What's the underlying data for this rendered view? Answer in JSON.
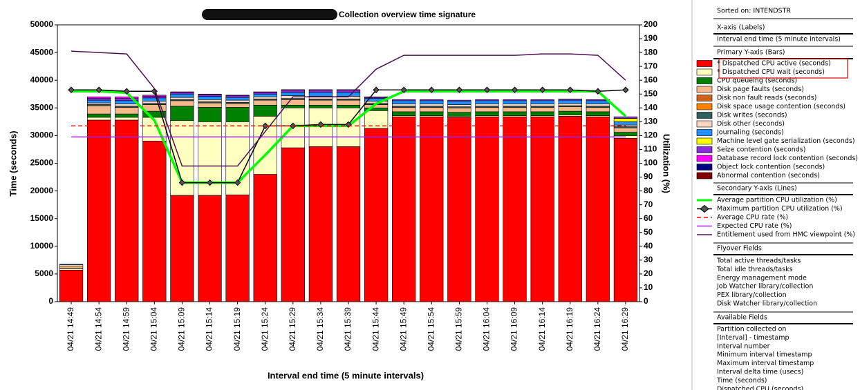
{
  "chart_data": {
    "type": "bar",
    "stacked": true,
    "title": "Collection overview time signature",
    "xlabel": "Interval end time (5 minute intervals)",
    "ylabel": "Time (seconds)",
    "y2label": "Utilization (%)",
    "categories": [
      "04/21 14:49",
      "04/21 14:54",
      "04/21 14:59",
      "04/21 15:04",
      "04/21 15:09",
      "04/21 15:14",
      "04/21 15:19",
      "04/21 15:24",
      "04/21 15:29",
      "04/21 15:34",
      "04/21 15:39",
      "04/21 15:44",
      "04/21 15:49",
      "04/21 15:54",
      "04/21 15:59",
      "04/21 16:04",
      "04/21 16:09",
      "04/21 16:14",
      "04/21 16:19",
      "04/21 16:24",
      "04/21 16:29"
    ],
    "ylim": [
      0,
      50000
    ],
    "yticks": [
      0,
      5000,
      10000,
      15000,
      20000,
      25000,
      30000,
      35000,
      40000,
      45000,
      50000
    ],
    "y2lim": [
      0,
      200
    ],
    "y2ticks": [
      0,
      10,
      20,
      30,
      40,
      50,
      60,
      70,
      80,
      90,
      100,
      110,
      120,
      130,
      140,
      150,
      160,
      170,
      180,
      190,
      200
    ],
    "series": [
      {
        "name": "* Dispatched CPU active (seconds)",
        "color": "#ff0000",
        "values": [
          5700,
          32800,
          32800,
          29000,
          19200,
          19200,
          19300,
          23000,
          27800,
          28000,
          28000,
          31300,
          33400,
          33400,
          33300,
          33400,
          33400,
          33400,
          33500,
          33400,
          29500
        ]
      },
      {
        "name": "* Dispatched CPU wait (seconds)",
        "color": "#ffffc0",
        "values": [
          300,
          500,
          500,
          4300,
          13500,
          13300,
          13200,
          10500,
          7200,
          7000,
          7000,
          3200,
          200,
          200,
          200,
          200,
          200,
          200,
          200,
          200,
          500
        ]
      },
      {
        "name": "CPU queueing (seconds)",
        "color": "#008000",
        "values": [
          50,
          600,
          600,
          1100,
          2600,
          2600,
          2600,
          2000,
          500,
          500,
          500,
          500,
          700,
          700,
          700,
          700,
          700,
          700,
          700,
          700,
          600
        ]
      },
      {
        "name": "Disk page faults (seconds)",
        "color": "#f5b88a",
        "values": [
          400,
          1500,
          1200,
          1200,
          1000,
          800,
          700,
          900,
          1000,
          900,
          900,
          600,
          800,
          800,
          800,
          800,
          800,
          800,
          800,
          800,
          800
        ]
      },
      {
        "name": "Disk non fault reads (seconds)",
        "color": "#d0601a",
        "values": [
          0,
          0,
          0,
          0,
          0,
          0,
          0,
          0,
          0,
          0,
          0,
          0,
          0,
          0,
          0,
          0,
          0,
          0,
          0,
          0,
          0
        ]
      },
      {
        "name": "Disk space usage contention (seconds)",
        "color": "#ff8000",
        "values": [
          0,
          0,
          0,
          0,
          0,
          0,
          0,
          0,
          0,
          0,
          0,
          0,
          0,
          0,
          0,
          0,
          0,
          0,
          0,
          0,
          0
        ]
      },
      {
        "name": "Disk writes (seconds)",
        "color": "#2f5f5f",
        "values": [
          0,
          200,
          200,
          200,
          200,
          200,
          200,
          200,
          200,
          200,
          200,
          200,
          200,
          200,
          200,
          200,
          200,
          200,
          200,
          200,
          200
        ]
      },
      {
        "name": "Disk other (seconds)",
        "color": "#f8d8c0",
        "values": [
          200,
          300,
          400,
          400,
          400,
          400,
          400,
          400,
          500,
          500,
          500,
          400,
          400,
          400,
          400,
          400,
          400,
          400,
          400,
          400,
          300
        ]
      },
      {
        "name": "Journaling (seconds)",
        "color": "#1e90ff",
        "values": [
          100,
          500,
          600,
          600,
          600,
          600,
          500,
          500,
          600,
          700,
          700,
          500,
          600,
          600,
          600,
          600,
          600,
          600,
          600,
          600,
          600
        ]
      },
      {
        "name": "Machine level gate serialization (seconds)",
        "color": "#ffff00",
        "values": [
          0,
          0,
          0,
          0,
          0,
          0,
          0,
          0,
          0,
          0,
          0,
          0,
          0,
          0,
          0,
          0,
          0,
          0,
          0,
          0,
          600
        ]
      },
      {
        "name": "Seize contention (seconds)",
        "color": "#8a2be2",
        "values": [
          0,
          300,
          400,
          300,
          300,
          300,
          300,
          300,
          400,
          400,
          400,
          200,
          200,
          200,
          200,
          200,
          200,
          200,
          200,
          200,
          300
        ]
      },
      {
        "name": "Database record lock contention (seconds)",
        "color": "#ff00ff",
        "values": [
          0,
          300,
          300,
          200,
          100,
          100,
          100,
          100,
          100,
          100,
          100,
          100,
          0,
          0,
          0,
          0,
          0,
          0,
          0,
          0,
          0
        ]
      },
      {
        "name": "Object lock contention (seconds)",
        "color": "#000080",
        "values": [
          0,
          0,
          0,
          0,
          0,
          0,
          0,
          0,
          0,
          0,
          0,
          0,
          0,
          0,
          0,
          0,
          0,
          0,
          0,
          0,
          0
        ]
      },
      {
        "name": "Abnormal contention (seconds)",
        "color": "#800000",
        "values": [
          0,
          0,
          0,
          0,
          0,
          0,
          0,
          0,
          0,
          0,
          0,
          0,
          0,
          0,
          0,
          0,
          0,
          0,
          0,
          0,
          0
        ]
      }
    ],
    "lines": [
      {
        "name": "Average partition CPU utilization (%)",
        "color": "#00ff00",
        "axis": "y2",
        "style": "thick",
        "values": [
          152,
          152,
          151,
          131,
          86,
          86,
          86,
          106,
          127,
          127,
          127,
          143,
          152,
          152,
          152,
          152,
          152,
          152,
          152,
          152,
          134
        ]
      },
      {
        "name": "Maximum partition CPU utilization (%)",
        "color": "#000000",
        "axis": "y2",
        "style": "diamond",
        "values": [
          153,
          153,
          152,
          152,
          86,
          86,
          86,
          127,
          127,
          128,
          128,
          153,
          153,
          153,
          153,
          153,
          153,
          153,
          153,
          152,
          153
        ]
      },
      {
        "name": "Average CPU rate (%)",
        "color": "#ff0000",
        "axis": "y2",
        "style": "dashed",
        "values": [
          127,
          127,
          127,
          127,
          127,
          127,
          127,
          127,
          127,
          127,
          127,
          127,
          127,
          127,
          127,
          127,
          127,
          127,
          127,
          127,
          127
        ]
      },
      {
        "name": "Expected CPU rate (%)",
        "color": "#a020f0",
        "axis": "y2",
        "style": "solid",
        "values": [
          119,
          119,
          119,
          119,
          119,
          119,
          119,
          119,
          119,
          119,
          119,
          119,
          119,
          119,
          119,
          119,
          119,
          119,
          119,
          119,
          119
        ]
      },
      {
        "name": "Entitlement used from HMC viewpoint (%)",
        "color": "#4b1050",
        "axis": "y2",
        "style": "solid",
        "values": [
          181,
          180,
          179,
          154,
          98,
          98,
          98,
          123,
          148,
          148,
          148,
          168,
          178,
          178,
          178,
          178,
          178,
          179,
          179,
          178,
          160
        ]
      }
    ]
  },
  "panel": {
    "sorted_on": "Sorted on: INTENDSTR",
    "x_axis_heading": "X-axis (Labels)",
    "x_axis_item": "Interval end time (5 minute intervals)",
    "primary_heading": "Primary Y-axis (Bars)",
    "secondary_heading": "Secondary Y-axis (Lines)",
    "flyover_heading": "Flyover Fields",
    "flyover": [
      "Total active threads/tasks",
      "Total idle threads/tasks",
      "Energy management mode",
      "Job Watcher library/collection",
      "PEX library/collection",
      "Disk Watcher library/collection"
    ],
    "available_heading": "Available Fields",
    "available": [
      "Partition collected on",
      "[Interval] - timestamp",
      "Interval number",
      "Minimum interval timestamp",
      "Maximum interval timestamp",
      "Interval delta time (usecs)",
      "Time (seconds)",
      "Dispatched CPU (seconds)"
    ]
  }
}
